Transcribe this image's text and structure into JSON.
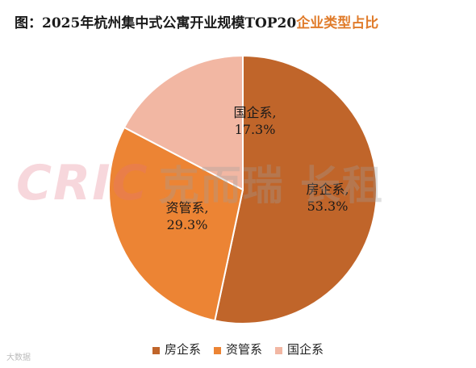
{
  "title": {
    "main": "图：2025年杭州集中式公寓开业规模TOP20",
    "accent": "企业类型占比"
  },
  "watermark": {
    "latin": "CRIC",
    "cn": "克而瑞 长租"
  },
  "footer_mark": "大数据",
  "chart_data": {
    "type": "pie",
    "title": "图：2025年杭州集中式公寓开业规模TOP20企业类型占比",
    "slices": [
      {
        "name": "房企系",
        "value": 53.3,
        "label": "53.3%",
        "color": "#c0652a"
      },
      {
        "name": "资管系",
        "value": 29.3,
        "label": "29.3%",
        "color": "#ec8434"
      },
      {
        "name": "国企系",
        "value": 17.3,
        "label": "17.3%",
        "color": "#f2b7a3"
      }
    ],
    "legend_position": "bottom"
  }
}
